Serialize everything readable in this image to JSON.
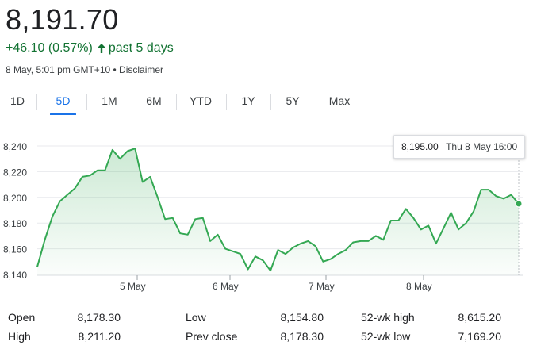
{
  "quote": {
    "price": "8,191.70",
    "change": "+46.10 (0.57%)",
    "period": "past 5 days",
    "timestamp": "8 May, 5:01 pm GMT+10 • Disclaimer",
    "accent_color": "#137333"
  },
  "tabs": {
    "items": [
      {
        "label": "1D",
        "active": false
      },
      {
        "label": "5D",
        "active": true
      },
      {
        "label": "1M",
        "active": false
      },
      {
        "label": "6M",
        "active": false
      },
      {
        "label": "YTD",
        "active": false
      },
      {
        "label": "1Y",
        "active": false
      },
      {
        "label": "5Y",
        "active": false
      },
      {
        "label": "Max",
        "active": false
      }
    ]
  },
  "tooltip": {
    "value": "8,195.00",
    "time": "Thu 8 May 16:00"
  },
  "chart_data": {
    "type": "area",
    "line_color": "#34a853",
    "ylim": [
      8140,
      8240
    ],
    "y_ticks": [
      "8,140",
      "8,160",
      "8,180",
      "8,200",
      "8,220",
      "8,240"
    ],
    "x_tick_labels": [
      "5 May",
      "6 May",
      "7 May",
      "8 May"
    ],
    "grid": true,
    "values": [
      8146,
      8167,
      8185,
      8197,
      8202,
      8207,
      8216,
      8217,
      8221,
      8221,
      8237,
      8230,
      8236,
      8238,
      8212,
      8216,
      8200,
      8183,
      8184,
      8172,
      8171,
      8183,
      8184,
      8166,
      8171,
      8160,
      8158,
      8156,
      8144,
      8154,
      8151,
      8143,
      8159,
      8156,
      8161,
      8164,
      8166,
      8162,
      8150,
      8152,
      8156,
      8159,
      8165,
      8166,
      8166,
      8170,
      8167,
      8182,
      8182,
      8191,
      8184,
      8175,
      8178,
      8164,
      8176,
      8188,
      8175,
      8180,
      8189,
      8206,
      8206,
      8201,
      8199,
      8202,
      8195
    ]
  },
  "stats": [
    {
      "label": "Open",
      "value": "8,178.30"
    },
    {
      "label": "High",
      "value": "8,211.20"
    },
    {
      "label": "Low",
      "value": "8,154.80"
    },
    {
      "label": "Prev close",
      "value": "8,178.30"
    },
    {
      "label": "52-wk high",
      "value": "8,615.20"
    },
    {
      "label": "52-wk low",
      "value": "7,169.20"
    }
  ]
}
